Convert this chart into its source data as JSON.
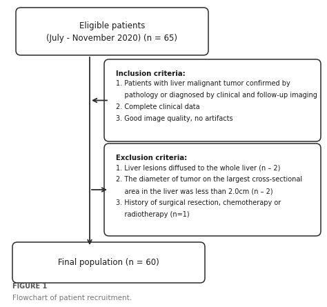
{
  "bg_color": "#ffffff",
  "box_color": "#ffffff",
  "box_edge_color": "#2a2a2a",
  "text_color": "#1a1a1a",
  "arrow_color": "#2a2a2a",
  "title": "FIGURE 1",
  "subtitle": "Flowchart of patient recruitment.",
  "box1_line1": "Eligible patients",
  "box1_line2": "(July - November 2020) (n = 65)",
  "inc_title": "Inclusion criteria:",
  "inc_lines": [
    "1. Patients with liver malignant tumor confirmed by",
    "    pathology or diagnosed by clinical and follow-up imaging",
    "2. Complete clinical data",
    "3. Good image quality, no artifacts"
  ],
  "exc_title": "Exclusion criteria:",
  "exc_lines": [
    "1. Liver lesions diffused to the whole liver (n – 2)",
    "2. The diameter of tumor on the largest cross-sectional",
    "    area in the liver was less than 2.0cm (n – 2)",
    "3. History of surgical resection, chemotherapy or",
    "    radiotherapy (n=1)"
  ],
  "box4_text": "Final population (n = 60)",
  "fig_label": "FIGURE 1",
  "fig_caption": "Flowchart of patient recruitment."
}
